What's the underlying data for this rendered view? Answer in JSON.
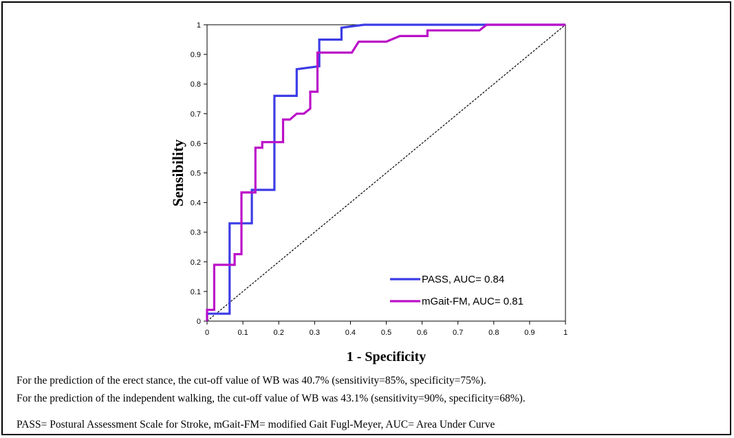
{
  "chart_data": {
    "type": "line",
    "title": "",
    "xlabel": "1 - Specificity",
    "ylabel": "Sensibility",
    "xlim": [
      0,
      1
    ],
    "ylim": [
      0,
      1
    ],
    "xticks": [
      "0",
      "0.1",
      "0.2",
      "0.3",
      "0.4",
      "0.5",
      "0.6",
      "0.7",
      "0.8",
      "0.9",
      "1"
    ],
    "yticks": [
      "0",
      "0.1",
      "0.2",
      "0.3",
      "0.4",
      "0.5",
      "0.6",
      "0.7",
      "0.8",
      "0.9",
      "1"
    ],
    "grid": false,
    "legend_position": "bottom-right",
    "series": [
      {
        "name": "PASS,    AUC= 0.84",
        "color": "#3c3ce6",
        "style": "step",
        "points": [
          [
            0,
            0
          ],
          [
            0,
            0.025
          ],
          [
            0.063,
            0.025
          ],
          [
            0.063,
            0.33
          ],
          [
            0.125,
            0.33
          ],
          [
            0.125,
            0.443
          ],
          [
            0.188,
            0.443
          ],
          [
            0.188,
            0.76
          ],
          [
            0.25,
            0.76
          ],
          [
            0.25,
            0.85
          ],
          [
            0.313,
            0.86
          ],
          [
            0.313,
            0.95
          ],
          [
            0.375,
            0.95
          ],
          [
            0.375,
            0.99
          ],
          [
            0.438,
            1.0
          ],
          [
            0.8,
            1.0
          ],
          [
            1,
            1
          ]
        ]
      },
      {
        "name": "mGait-FM, AUC= 0.81",
        "color": "#bb10c8",
        "style": "step",
        "points": [
          [
            0,
            0
          ],
          [
            0,
            0.038
          ],
          [
            0.02,
            0.038
          ],
          [
            0.02,
            0.19
          ],
          [
            0.077,
            0.19
          ],
          [
            0.077,
            0.226
          ],
          [
            0.096,
            0.226
          ],
          [
            0.096,
            0.434
          ],
          [
            0.135,
            0.434
          ],
          [
            0.135,
            0.585
          ],
          [
            0.154,
            0.585
          ],
          [
            0.154,
            0.604
          ],
          [
            0.212,
            0.604
          ],
          [
            0.212,
            0.68
          ],
          [
            0.231,
            0.68
          ],
          [
            0.25,
            0.7
          ],
          [
            0.27,
            0.7
          ],
          [
            0.288,
            0.717
          ],
          [
            0.288,
            0.774
          ],
          [
            0.308,
            0.774
          ],
          [
            0.308,
            0.906
          ],
          [
            0.404,
            0.906
          ],
          [
            0.423,
            0.943
          ],
          [
            0.5,
            0.943
          ],
          [
            0.538,
            0.962
          ],
          [
            0.615,
            0.962
          ],
          [
            0.615,
            0.981
          ],
          [
            0.76,
            0.981
          ],
          [
            0.78,
            1.0
          ],
          [
            1,
            1
          ]
        ]
      },
      {
        "name": "",
        "color": "#000000",
        "style": "dashed",
        "points": [
          [
            0,
            0
          ],
          [
            1,
            1
          ]
        ]
      }
    ]
  },
  "captions": {
    "line1": "For the prediction of the erect stance, the cut-off value of WB was 40.7% (sensitivity=85%, specificity=75%).",
    "line2": "For the prediction of the independent walking, the cut-off value of WB was 43.1% (sensitivity=90%, specificity=68%).",
    "line3": "PASS= Postural Assessment Scale for Stroke, mGait-FM= modified Gait Fugl-Meyer, AUC= Area Under Curve"
  }
}
